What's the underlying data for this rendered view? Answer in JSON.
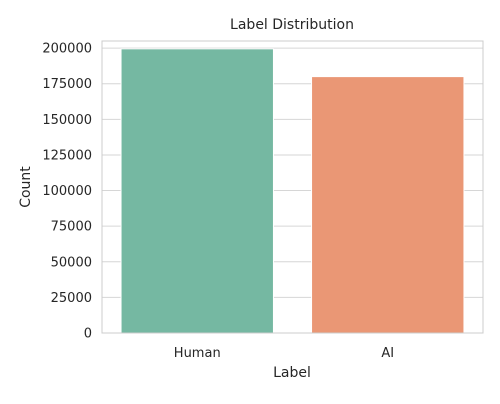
{
  "chart_data": {
    "type": "bar",
    "title": "Label Distribution",
    "xlabel": "Label",
    "ylabel": "Count",
    "categories": [
      "Human",
      "AI"
    ],
    "values": [
      199500,
      180000
    ],
    "colors": [
      "#75b8a2",
      "#ea9775"
    ],
    "ylim": [
      0,
      205000
    ],
    "yticks": [
      0,
      25000,
      50000,
      75000,
      100000,
      125000,
      150000,
      175000,
      200000
    ],
    "ytick_labels": [
      "0",
      "25000",
      "50000",
      "75000",
      "100000",
      "125000",
      "150000",
      "175000",
      "200000"
    ],
    "grid": "horizontal",
    "legend": "none"
  }
}
